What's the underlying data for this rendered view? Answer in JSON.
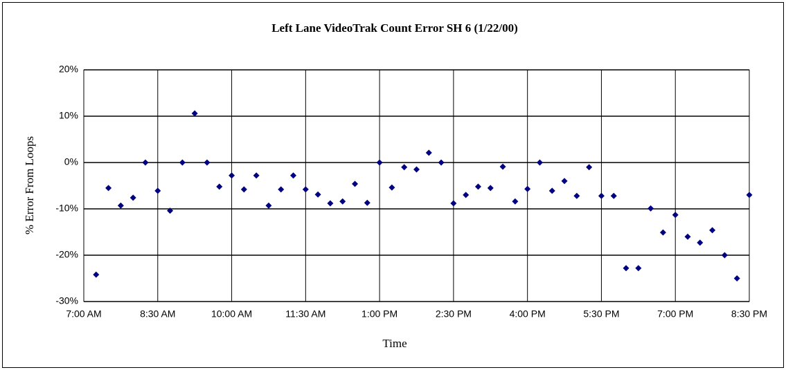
{
  "chart_data": {
    "type": "scatter",
    "title": "Left Lane VideoTrak Count Error SH 6 (1/22/00)",
    "x_label": "Time",
    "y_label": "% Error From Loops",
    "series": [
      {
        "color": "#000080",
        "x": [
          435,
          450,
          465,
          480,
          495,
          510,
          525,
          540,
          555,
          570,
          585,
          600,
          615,
          630,
          645,
          660,
          675,
          690,
          705,
          720,
          735,
          750,
          765,
          780,
          795,
          810,
          825,
          840,
          855,
          870,
          885,
          900,
          915,
          930,
          945,
          960,
          975,
          990,
          1005,
          1020,
          1035,
          1050,
          1065,
          1080,
          1095,
          1110,
          1125,
          1140,
          1155,
          1170,
          1185,
          1200,
          1215,
          1230
        ],
        "values": [
          -24.2,
          -5.5,
          -9.3,
          -7.6,
          0,
          -6.1,
          -10.4,
          0,
          10.6,
          0,
          -5.2,
          -2.8,
          -5.8,
          -2.8,
          -9.3,
          -5.8,
          -2.8,
          -5.8,
          -6.9,
          -8.8,
          -8.4,
          -4.6,
          -8.7,
          0,
          -5.4,
          -1.0,
          -1.5,
          2.1,
          0,
          -8.8,
          -7.0,
          -5.2,
          -5.5,
          -0.9,
          -8.4,
          -5.7,
          0,
          -6.1,
          -4.0,
          -7.2,
          -1.0,
          -7.2,
          -7.2,
          -22.8,
          -22.8,
          -9.9,
          -15.1,
          -11.3,
          -16.0,
          -17.3,
          -14.6,
          -20,
          -25,
          -7.0
        ]
      }
    ],
    "xlim": [
      420,
      1230
    ],
    "xticks": [
      {
        "value": 420,
        "label": "7:00 AM"
      },
      {
        "value": 510,
        "label": "8:30 AM"
      },
      {
        "value": 600,
        "label": "10:00 AM"
      },
      {
        "value": 690,
        "label": "11:30 AM"
      },
      {
        "value": 780,
        "label": "1:00 PM"
      },
      {
        "value": 870,
        "label": "2:30 PM"
      },
      {
        "value": 960,
        "label": "4:00 PM"
      },
      {
        "value": 1050,
        "label": "5:30 PM"
      },
      {
        "value": 1140,
        "label": "7:00 PM"
      },
      {
        "value": 1230,
        "label": "8:30 PM"
      }
    ],
    "ylim": [
      -30,
      20
    ],
    "yticks": [
      {
        "value": -30,
        "label": "-30%"
      },
      {
        "value": -20,
        "label": "-20%"
      },
      {
        "value": -10,
        "label": "-10%"
      },
      {
        "value": 0,
        "label": "0%"
      },
      {
        "value": 10,
        "label": "10%"
      },
      {
        "value": 20,
        "label": "20%"
      }
    ],
    "grid": true
  }
}
